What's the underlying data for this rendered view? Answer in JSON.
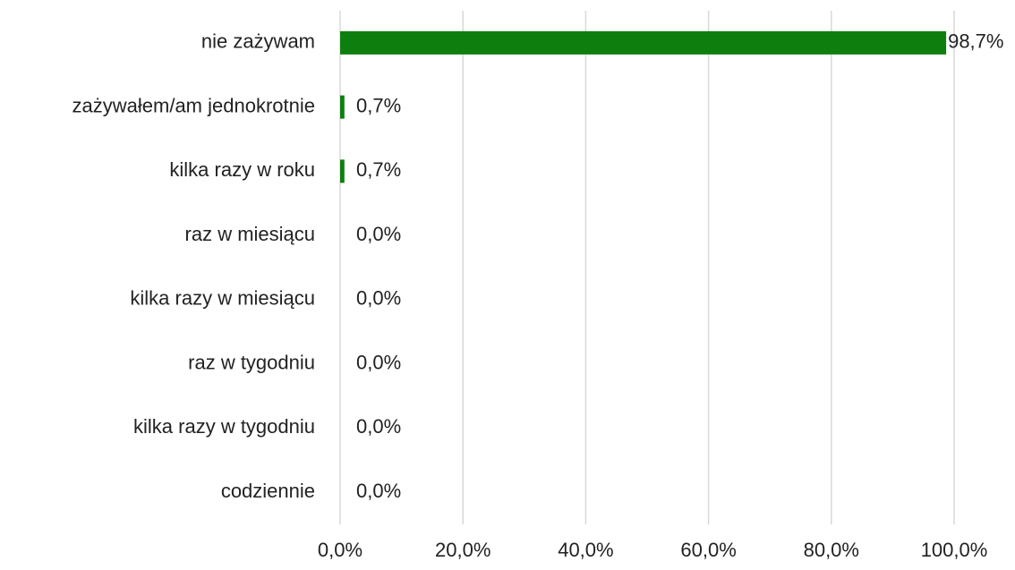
{
  "chart_data": {
    "type": "barh",
    "categories": [
      "nie zażywam",
      "zażywałem/am jednokrotnie",
      "kilka razy w roku",
      "raz w miesiącu",
      "kilka razy w miesiącu",
      "raz w tygodniu",
      "kilka razy w tygodniu",
      "codziennie"
    ],
    "values": [
      98.7,
      0.7,
      0.7,
      0,
      0,
      0,
      0,
      0
    ],
    "value_labels": [
      "98,7%",
      "0,7%",
      "0,7%",
      "0,0%",
      "0,0%",
      "0,0%",
      "0,0%",
      "0,0%"
    ],
    "color": "#0e7f0e",
    "xlim": [
      0,
      100
    ],
    "xticks": [
      {
        "value": 0,
        "label": "0,0%"
      },
      {
        "value": 20,
        "label": "20,0%"
      },
      {
        "value": 40,
        "label": "40,0%"
      },
      {
        "value": 60,
        "label": "60,0%"
      },
      {
        "value": 80,
        "label": "80,0%"
      },
      {
        "value": 100,
        "label": "100,0%"
      }
    ],
    "grid": true
  }
}
